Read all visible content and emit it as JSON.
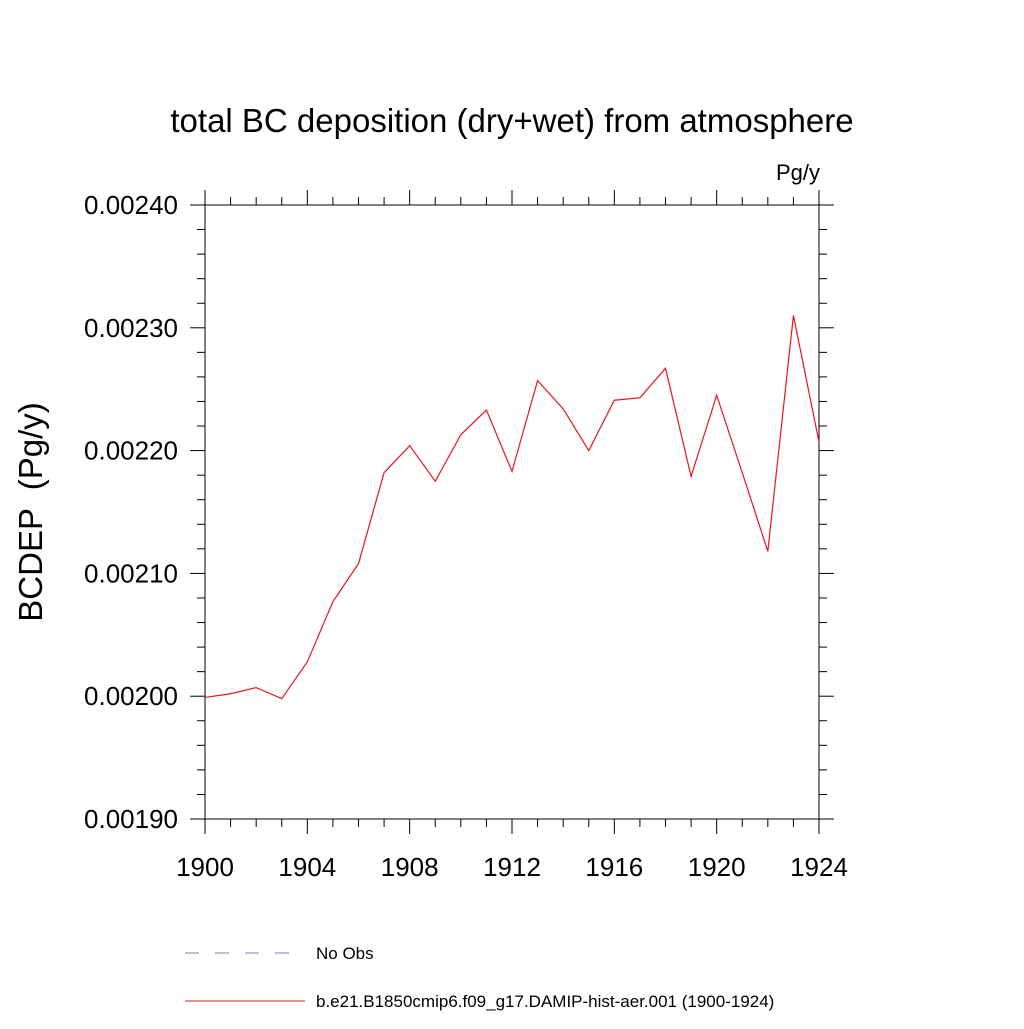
{
  "chart_data": {
    "type": "line",
    "title": "total BC deposition (dry+wet) from atmosphere",
    "units_label": "Pg/y",
    "ylabel": "BCDEP  (Pg/y)",
    "xlabel": "",
    "xlim": [
      1900,
      1924
    ],
    "ylim": [
      0.0019,
      0.0024
    ],
    "xticks": [
      1900,
      1904,
      1908,
      1912,
      1916,
      1920,
      1924
    ],
    "xtick_labels": [
      "1900",
      "1904",
      "1908",
      "1912",
      "1916",
      "1920",
      "1924"
    ],
    "yticks": [
      0.0019,
      0.002,
      0.0021,
      0.0022,
      0.0023,
      0.0024
    ],
    "ytick_labels": [
      "0.00190",
      "0.00200",
      "0.00210",
      "0.00220",
      "0.00230",
      "0.00240"
    ],
    "grid": false,
    "legend_position": "bottom",
    "series": [
      {
        "name": "No Obs",
        "style": "dashed",
        "color": "#7b7bd6",
        "x": [],
        "y": []
      },
      {
        "name": "b.e21.B1850cmip6.f09_g17.DAMIP-hist-aer.001 (1900-1924)",
        "style": "solid",
        "color": "#e8151b",
        "x": [
          1900,
          1901,
          1902,
          1903,
          1904,
          1905,
          1906,
          1907,
          1908,
          1909,
          1910,
          1911,
          1912,
          1913,
          1914,
          1915,
          1916,
          1917,
          1918,
          1919,
          1920,
          1921,
          1922,
          1923,
          1924
        ],
        "y": [
          0.001999,
          0.002002,
          0.002007,
          0.001998,
          0.002028,
          0.002077,
          0.002108,
          0.002182,
          0.002204,
          0.002175,
          0.002213,
          0.002233,
          0.002183,
          0.002257,
          0.002234,
          0.0022,
          0.002241,
          0.002243,
          0.002267,
          0.002179,
          0.002245,
          0.002182,
          0.002118,
          0.00231,
          0.002207
        ]
      }
    ]
  }
}
